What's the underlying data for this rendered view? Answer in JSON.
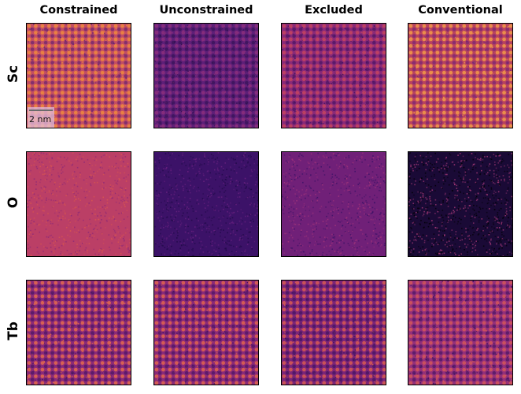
{
  "columns": [
    "Constrained",
    "Unconstrained",
    "Excluded",
    "Conventional"
  ],
  "rows": [
    "Sc",
    "O",
    "Tb"
  ],
  "scale_bar_label": "2 nm",
  "panels": [
    [
      {
        "bg": "#c24e63",
        "dot": "#f08a3c",
        "dark": "#5a1a73",
        "noise": 0.25,
        "lattice": true
      },
      {
        "bg": "#5e1f78",
        "dot": "#8c2f7d",
        "dark": "#2d1050",
        "noise": 0.55,
        "lattice": true
      },
      {
        "bg": "#8a2a78",
        "dot": "#c5445f",
        "dark": "#3a1060",
        "noise": 0.35,
        "lattice": true
      },
      {
        "bg": "#b8435f",
        "dot": "#f29a48",
        "dark": "#6a1e7a",
        "noise": 0.25,
        "lattice": true
      }
    ],
    [
      {
        "bg": "#bb3f66",
        "dot": "#d8564f",
        "dark": "#8e2a76",
        "noise": 0.7,
        "lattice": false
      },
      {
        "bg": "#3c1268",
        "dot": "#6a2180",
        "dark": "#200a48",
        "noise": 0.8,
        "lattice": false
      },
      {
        "bg": "#702078",
        "dot": "#a0347a",
        "dark": "#3c1266",
        "noise": 0.75,
        "lattice": false
      },
      {
        "bg": "#1a0a36",
        "dot": "#a83a78",
        "dark": "#000004",
        "noise": 0.95,
        "lattice": false
      }
    ],
    [
      {
        "bg": "#8a2a78",
        "dot": "#e46a4c",
        "dark": "#3d1063",
        "noise": 0.25,
        "lattice": true
      },
      {
        "bg": "#8a2a78",
        "dot": "#e0644e",
        "dark": "#3d1063",
        "noise": 0.25,
        "lattice": true
      },
      {
        "bg": "#7c2578",
        "dot": "#d85a52",
        "dark": "#36105e",
        "noise": 0.3,
        "lattice": true
      },
      {
        "bg": "#94307a",
        "dot": "#d4565a",
        "dark": "#3a1060",
        "noise": 0.45,
        "lattice": true
      }
    ]
  ]
}
